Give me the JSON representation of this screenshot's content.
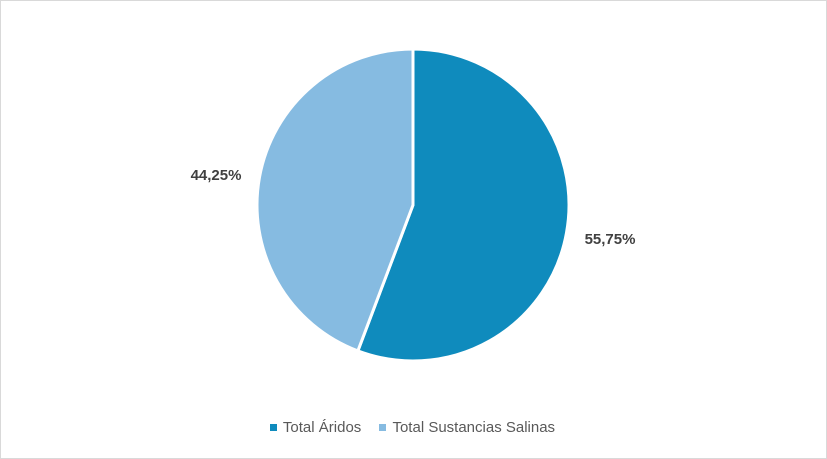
{
  "chart_data": {
    "type": "pie",
    "categories": [
      "Total Áridos",
      "Total Sustancias Salinas"
    ],
    "values": [
      55.75,
      44.25
    ],
    "labels": [
      "55,75%",
      "44,25%"
    ],
    "colors": [
      "#0f8bbd",
      "#86bbe1"
    ],
    "start_angle_deg": 0,
    "direction": "clockwise",
    "legend_position": "bottom",
    "title": ""
  }
}
